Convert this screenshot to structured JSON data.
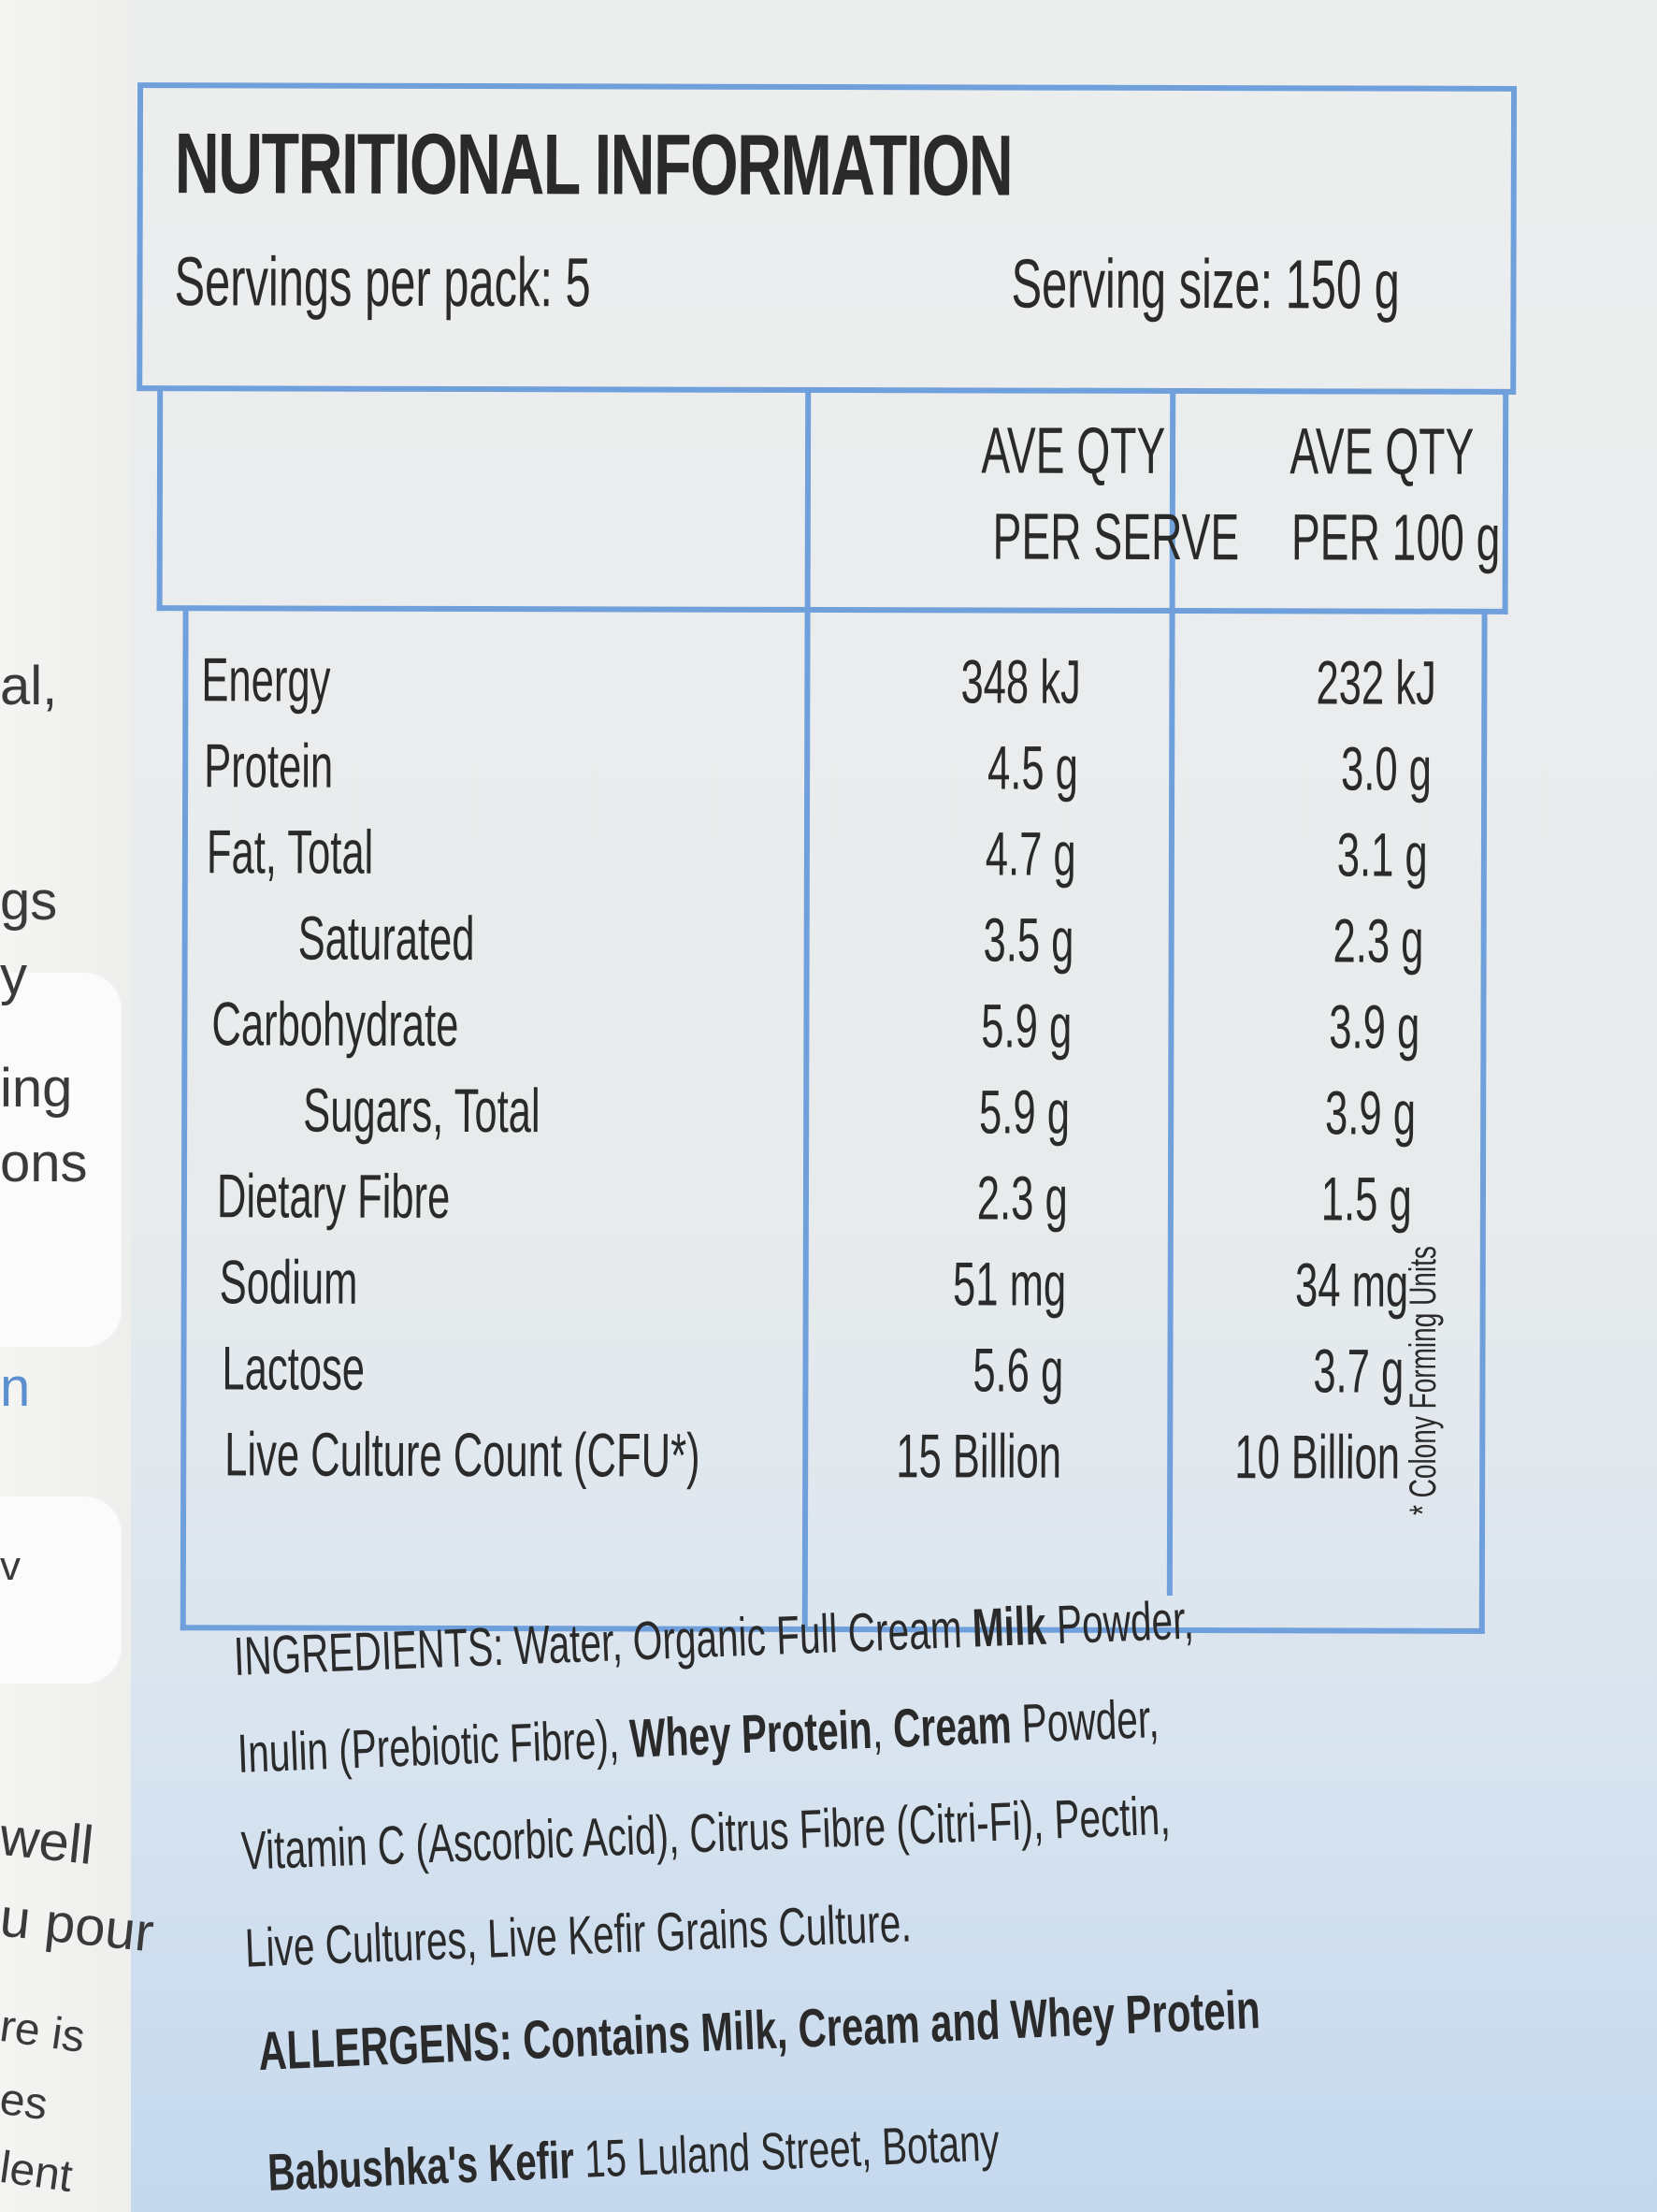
{
  "panel": {
    "title": "NUTRITIONAL INFORMATION",
    "servings_per_pack": "Servings per pack: 5",
    "serving_size": "Serving size: 150 g",
    "col_headers": {
      "per_serve_line1": "AVE QTY",
      "per_serve_line2": "PER SERVE",
      "per_100g_line1": "AVE QTY",
      "per_100g_line2": "PER 100 g"
    },
    "rows": [
      {
        "label": "Energy",
        "per_serve": "348 kJ",
        "per_100g": "232 kJ",
        "indent": false
      },
      {
        "label": "Protein",
        "per_serve": "4.5 g",
        "per_100g": "3.0 g",
        "indent": false
      },
      {
        "label": "Fat, Total",
        "per_serve": "4.7 g",
        "per_100g": "3.1 g",
        "indent": false
      },
      {
        "label": "Saturated",
        "per_serve": "3.5 g",
        "per_100g": "2.3 g",
        "indent": true
      },
      {
        "label": "Carbohydrate",
        "per_serve": "5.9 g",
        "per_100g": "3.9 g",
        "indent": false
      },
      {
        "label": "Sugars, Total",
        "per_serve": "5.9 g",
        "per_100g": "3.9 g",
        "indent": true
      },
      {
        "label": "Dietary Fibre",
        "per_serve": "2.3 g",
        "per_100g": "1.5 g",
        "indent": false
      },
      {
        "label": "Sodium",
        "per_serve": "51 mg",
        "per_100g": "34 mg",
        "indent": false
      },
      {
        "label": "Lactose",
        "per_serve": "5.6 g",
        "per_100g": "3.7 g",
        "indent": false
      },
      {
        "label": "Live Culture Count (CFU*)",
        "per_serve": "15 Billion",
        "per_100g": "10 Billion",
        "indent": false
      }
    ],
    "footnote": "* Colony Forming Units"
  },
  "ingredients": {
    "prefix": "INGREDIENTS:",
    "line1_a": " Water, Organic Full Cream ",
    "line1_bold": "Milk",
    "line1_b": " Powder,",
    "line2_a": "Inulin (Prebiotic Fibre), ",
    "line2_bold1": "Whey Protein",
    "line2_b": ", ",
    "line2_bold2": "Cream",
    "line2_c": " Powder,",
    "line3": "Vitamin C (Ascorbic Acid), Citrus Fibre (Citri-Fi), Pectin,",
    "line4": "Live Cultures, Live Kefir Grains Culture."
  },
  "allergens": "ALLERGENS: Contains Milk, Cream and Whey Protein",
  "address": {
    "brand": "Babushka's Kefir",
    "street": " 15 Luland Street, Botany"
  },
  "left_fragments": [
    "al,",
    "gs",
    "y",
    "ing",
    "ons",
    "n",
    "v",
    "well",
    "u pour",
    "re is",
    "es",
    "lent"
  ]
}
